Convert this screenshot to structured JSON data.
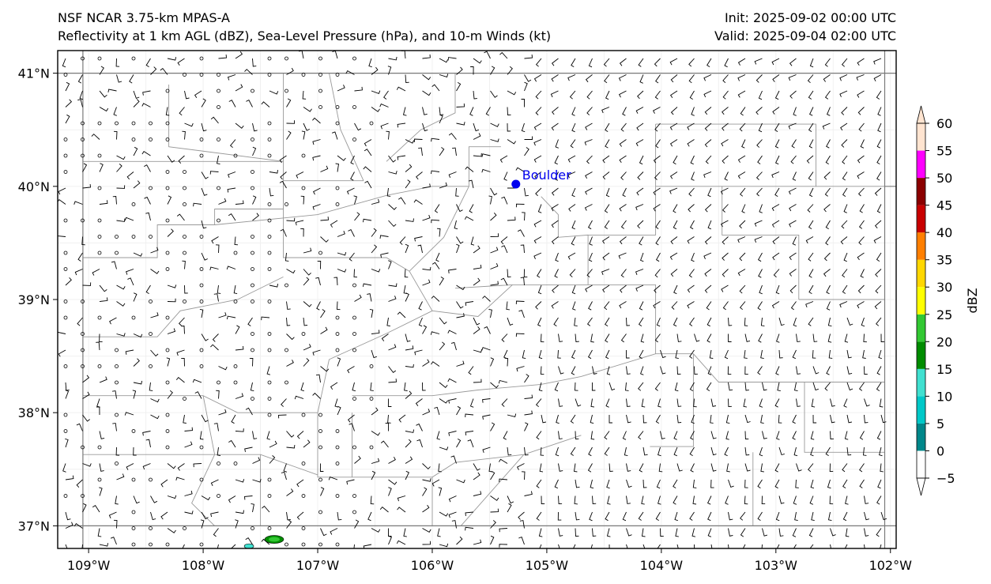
{
  "titles": {
    "left_line1": "NSF NCAR 3.75-km MPAS-A",
    "left_line2": "Reflectivity at 1 km AGL (dBZ), Sea-Level Pressure (hPa), and 10-m Winds (kt)",
    "right_line1": "Init: 2025-09-02 00:00 UTC",
    "right_line2": "Valid: 2025-09-04 02:00 UTC"
  },
  "map": {
    "lon_range": [
      -109.27,
      -101.95
    ],
    "lat_range": [
      36.8,
      41.2
    ],
    "lon_ticks": [
      -109,
      -108,
      -107,
      -106,
      -105,
      -104,
      -103,
      -102
    ],
    "lon_tick_labels": [
      "109°W",
      "108°W",
      "107°W",
      "106°W",
      "105°W",
      "104°W",
      "103°W",
      "102°W"
    ],
    "lat_ticks": [
      37,
      38,
      39,
      40,
      41
    ],
    "lat_tick_labels": [
      "37°N",
      "38°N",
      "39°N",
      "40°N",
      "41°N"
    ],
    "city": {
      "name": "Boulder",
      "lon": -105.27,
      "lat": 40.02,
      "color": "#0000ee"
    }
  },
  "colorbar": {
    "label": "dBZ",
    "levels": [
      -5,
      0,
      5,
      10,
      15,
      20,
      25,
      30,
      35,
      40,
      45,
      50,
      55,
      60
    ],
    "tick_labels": [
      "−5",
      "0",
      "5",
      "10",
      "15",
      "20",
      "25",
      "30",
      "35",
      "40",
      "45",
      "50",
      "55",
      "60"
    ],
    "colors": [
      "#ffffff",
      "#00878a",
      "#00c8c8",
      "#40e0d0",
      "#008c00",
      "#32c832",
      "#ffff00",
      "#ffd700",
      "#ff7f00",
      "#c80000",
      "#8b0000",
      "#ff00ff",
      "#ffe4d0"
    ]
  }
}
